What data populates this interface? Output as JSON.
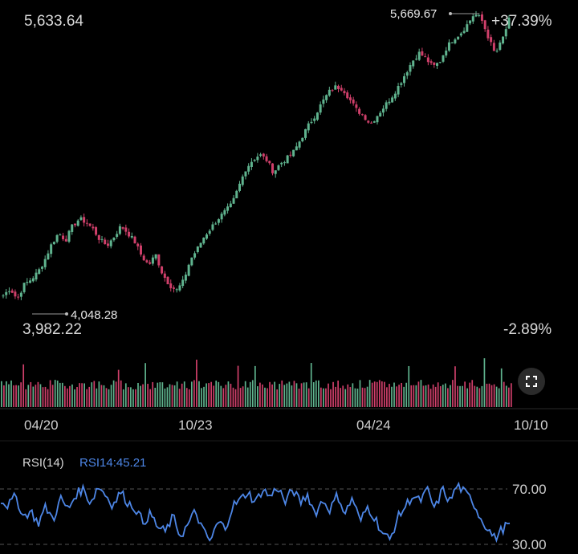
{
  "price_panel": {
    "current_value": "5,633.64",
    "high_label": "5,669.67",
    "low_label": "4,048.28",
    "range_low": "3,982.22",
    "pct_high": "+37.39%",
    "pct_low": "-2.89%"
  },
  "x_axis": {
    "ticks": [
      "04/20",
      "10/23",
      "04/24",
      "10/10"
    ]
  },
  "rsi_panel": {
    "title": "RSI(14)",
    "value_label": "RSI14:45.21",
    "levels": [
      "70.00",
      "30.00"
    ]
  },
  "controls": {
    "expand_icon": "expand-icon"
  },
  "colors": {
    "up": "#5fb38e",
    "down": "#cf3f6a",
    "rsi_line": "#4d86e6",
    "rsi_title": "#d8d8d8",
    "rsi_value": "#4d86e6",
    "background": "#000000"
  },
  "chart_data": [
    {
      "type": "candlestick",
      "title": "",
      "x_ticks": [
        "04/20",
        "10/23",
        "04/24",
        "10/10"
      ],
      "ylim": [
        3982.22,
        5669.67
      ],
      "high": 5669.67,
      "low": 4048.28,
      "last": 5633.64,
      "close_series": [
        4090,
        4130,
        4070,
        4150,
        4180,
        4220,
        4290,
        4380,
        4440,
        4400,
        4480,
        4520,
        4500,
        4460,
        4400,
        4370,
        4420,
        4480,
        4440,
        4390,
        4310,
        4260,
        4320,
        4210,
        4150,
        4117,
        4170,
        4290,
        4350,
        4420,
        4470,
        4520,
        4560,
        4600,
        4700,
        4800,
        4850,
        4880,
        4850,
        4780,
        4830,
        4860,
        4900,
        4970,
        5040,
        5100,
        5170,
        5230,
        5260,
        5250,
        5190,
        5130,
        5100,
        5050,
        5100,
        5150,
        5200,
        5260,
        5330,
        5400,
        5450,
        5420,
        5370,
        5400,
        5480,
        5530,
        5560,
        5610,
        5669.67,
        5640,
        5540,
        5440,
        5520,
        5633.64
      ]
    },
    {
      "type": "bar",
      "title": "",
      "note": "volume"
    },
    {
      "type": "line",
      "title": "RSI(14)",
      "series": [
        {
          "name": "RSI14",
          "values": [
            62,
            58,
            65,
            50,
            54,
            45,
            57,
            48,
            63,
            55,
            66,
            70,
            60,
            72,
            66,
            58,
            68,
            60,
            56,
            46,
            52,
            42,
            39,
            50,
            36,
            44,
            54,
            40,
            32,
            46,
            42,
            58,
            62,
            68,
            60,
            70,
            64,
            72,
            60,
            70,
            60,
            66,
            52,
            62,
            55,
            66,
            52,
            64,
            46,
            57,
            49,
            38,
            33,
            49,
            57,
            65,
            61,
            69,
            55,
            70,
            61,
            73,
            67,
            62,
            50,
            42,
            34,
            41,
            45.21
          ]
        }
      ],
      "ylim": [
        30,
        80
      ],
      "reference_lines": [
        70,
        30
      ],
      "last_value": 45.21
    }
  ]
}
